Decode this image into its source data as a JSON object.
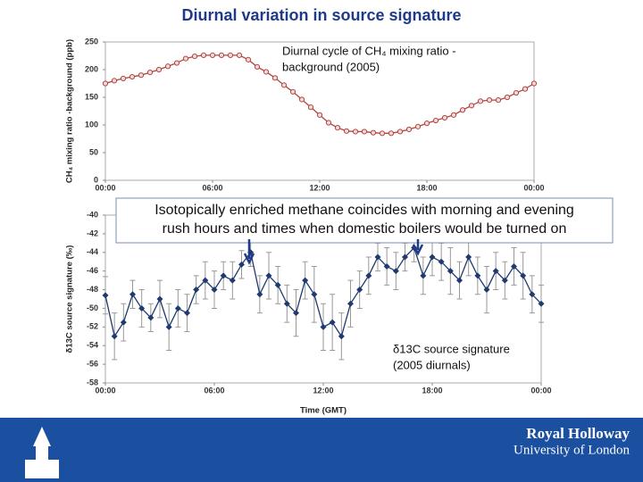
{
  "slide": {
    "title": "Diurnal variation in source signature",
    "callout": [
      "Isotopically enriched methane coincides with morning and evening",
      "rush hours and times when domestic boilers would be turned on"
    ],
    "logo": [
      "Royal Holloway",
      "University of London"
    ]
  },
  "chart_data": [
    {
      "type": "line",
      "ylabel": "CH₄ mixing ratio -background (ppb)",
      "annotation": [
        "Diurnal cycle of CH₄ mixing ratio -",
        "background (2005)"
      ],
      "color": "#b0453f",
      "marker": "circle",
      "x": [
        0,
        0.5,
        1,
        1.5,
        2,
        2.5,
        3,
        3.5,
        4,
        4.5,
        5,
        5.5,
        6,
        6.5,
        7,
        7.5,
        8,
        8.5,
        9,
        9.5,
        10,
        10.5,
        11,
        11.5,
        12,
        12.5,
        13,
        13.5,
        14,
        14.5,
        15,
        15.5,
        16,
        16.5,
        17,
        17.5,
        18,
        18.5,
        19,
        19.5,
        20,
        20.5,
        21,
        21.5,
        22,
        22.5,
        23,
        23.5,
        24
      ],
      "values": [
        175,
        180,
        184,
        187,
        190,
        195,
        200,
        206,
        212,
        220,
        224,
        226,
        226,
        226,
        226,
        226,
        218,
        205,
        196,
        185,
        172,
        160,
        146,
        132,
        118,
        104,
        95,
        89,
        88,
        88,
        86,
        85,
        85,
        88,
        92,
        97,
        103,
        108,
        113,
        118,
        127,
        135,
        143,
        145,
        145,
        150,
        158,
        165,
        175
      ],
      "xlim": [
        0,
        24
      ],
      "xticks": [
        {
          "value": 0,
          "label": "00:00"
        },
        {
          "value": 6,
          "label": "06:00"
        },
        {
          "value": 12,
          "label": "12:00"
        },
        {
          "value": 18,
          "label": "18:00"
        },
        {
          "value": 24,
          "label": "00:00"
        }
      ],
      "ylim": [
        0,
        250
      ],
      "yticks": [
        0,
        50,
        100,
        150,
        200,
        250
      ]
    },
    {
      "type": "errorline",
      "xlabel": "Time (GMT)",
      "ylabel": "δ13C source signature (‰)",
      "annotation": [
        "δ13C source signature",
        "(2005 diurnals)"
      ],
      "color": "#1f3a6e",
      "error_color": "#999999",
      "marker": "diamond",
      "x": [
        0,
        0.5,
        1,
        1.5,
        2,
        2.5,
        3,
        3.5,
        4,
        4.5,
        5,
        5.5,
        6,
        6.5,
        7,
        7.5,
        8,
        8.5,
        9,
        9.5,
        10,
        10.5,
        11,
        11.5,
        12,
        12.5,
        13,
        13.5,
        14,
        14.5,
        15,
        15.5,
        16,
        16.5,
        17,
        17.5,
        18,
        18.5,
        19,
        19.5,
        20,
        20.5,
        21,
        21.5,
        22,
        22.5,
        23,
        23.5,
        24
      ],
      "values": [
        -48.6,
        -53,
        -51.5,
        -48.5,
        -50,
        -51,
        -49,
        -52,
        -50,
        -50.5,
        -48,
        -47,
        -48,
        -46.5,
        -47,
        -45.3,
        -44,
        -48.5,
        -46.5,
        -47.5,
        -49.5,
        -50.5,
        -47,
        -48.5,
        -52,
        -51.5,
        -53,
        -49.5,
        -48,
        -46.5,
        -44.5,
        -45.5,
        -46,
        -44.5,
        -43.5,
        -46.5,
        -44.5,
        -45,
        -46,
        -47,
        -44.5,
        -46.5,
        -48,
        -46,
        -47,
        -45.5,
        -46.5,
        -48.5,
        -49.5
      ],
      "errors": [
        2,
        2.5,
        2,
        1.5,
        2,
        1.5,
        2,
        2.5,
        2,
        2,
        1.5,
        2,
        2,
        1.5,
        2,
        1.5,
        1.5,
        2,
        2.5,
        2,
        2,
        2.5,
        2,
        3,
        2.5,
        3,
        2.5,
        2.5,
        2,
        2,
        1.5,
        2,
        2,
        1.5,
        1.5,
        2,
        2,
        2,
        2.5,
        2,
        2,
        2,
        2.5,
        2,
        2,
        2,
        2.5,
        2,
        2
      ],
      "xlim": [
        0,
        24
      ],
      "xticks": [
        {
          "value": 0,
          "label": "00:00"
        },
        {
          "value": 6,
          "label": "06:00"
        },
        {
          "value": 12,
          "label": "12:00"
        },
        {
          "value": 18,
          "label": "18:00"
        },
        {
          "value": 24,
          "label": "00:00"
        }
      ],
      "ylim": [
        -58,
        -40
      ],
      "yticks": [
        -58,
        -56,
        -54,
        -52,
        -50,
        -48,
        -46,
        -44,
        -42,
        -40
      ]
    }
  ]
}
